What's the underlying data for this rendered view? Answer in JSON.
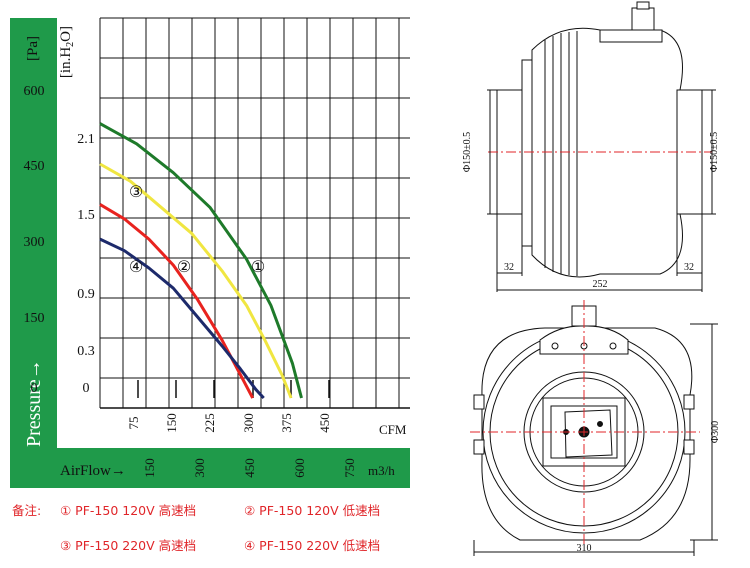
{
  "chart_data": {
    "type": "line",
    "title": "",
    "xlabel": "AirFlow→",
    "ylabel": "Pressure→",
    "x_unit_primary": "CFM",
    "x_unit_secondary": "m3/h",
    "y_unit_primary": "[Pa]",
    "y_unit_secondary": "[in.H2O]",
    "xlim": [
      0,
      510
    ],
    "ylim": [
      0,
      0.55
    ],
    "x_ticks_cfm": [
      "75",
      "150",
      "225",
      "300",
      "375",
      "450"
    ],
    "x_ticks_m3h": [
      "150",
      "300",
      "450",
      "600",
      "750"
    ],
    "y_ticks_pa": [
      "600",
      "450",
      "300",
      "150",
      "0"
    ],
    "y_ticks_inh2o": [
      "2.1",
      "1.5",
      "0.9",
      "0.3",
      "0"
    ],
    "grid": true,
    "series": [
      {
        "name": "①",
        "color": "#1e7a2a",
        "x": [
          0,
          60,
          120,
          180,
          240,
          280,
          315,
          330
        ],
        "y": [
          0.475,
          0.44,
          0.39,
          0.33,
          0.24,
          0.16,
          0.06,
          0
        ]
      },
      {
        "name": "②",
        "color": "#e8231f",
        "x": [
          0,
          40,
          80,
          120,
          160,
          200,
          230,
          250
        ],
        "y": [
          0.335,
          0.31,
          0.275,
          0.23,
          0.17,
          0.1,
          0.04,
          0
        ]
      },
      {
        "name": "③",
        "color": "#f0e641",
        "x": [
          0,
          50,
          100,
          150,
          200,
          240,
          270,
          298,
          313
        ],
        "y": [
          0.405,
          0.375,
          0.33,
          0.285,
          0.22,
          0.16,
          0.1,
          0.04,
          0
        ]
      },
      {
        "name": "④",
        "color": "#1d2a6b",
        "x": [
          0,
          40,
          80,
          120,
          160,
          200,
          230,
          255,
          268
        ],
        "y": [
          0.275,
          0.255,
          0.225,
          0.19,
          0.14,
          0.09,
          0.05,
          0.015,
          0
        ]
      }
    ],
    "curve_labels": [
      "①",
      "②",
      "③",
      "④"
    ],
    "colors": {
      "frame_green": "#1f9a4a",
      "text_dark": "#111111",
      "axis_white": "#ffffff"
    }
  },
  "note": {
    "prefix": "备注:",
    "items": [
      "① PF-150 120V 高速档",
      "② PF-150 120V 低速档",
      "③ PF-150 220V 高速档",
      "④ PF-150 220V 低速档"
    ]
  },
  "drawing_side": {
    "dim_left": "Φ150±0.5",
    "dim_right": "Φ150±0.5",
    "dim_left_len": "32",
    "dim_right_len": "32",
    "dim_total": "252"
  },
  "drawing_front": {
    "dim_height": "Φ300",
    "dim_width": "310"
  }
}
